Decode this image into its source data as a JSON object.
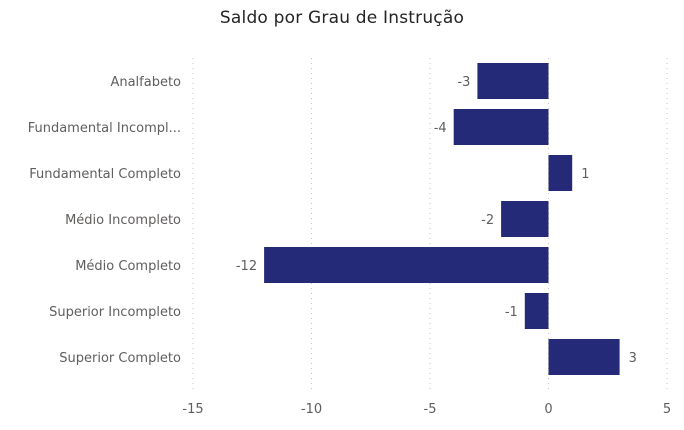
{
  "chart_data": {
    "type": "bar",
    "orientation": "horizontal",
    "title": "Saldo por Grau de Instrução",
    "xlabel": "",
    "ylabel": "",
    "categories": [
      "Analfabeto",
      "Fundamental Incompl...",
      "Fundamental Completo",
      "Médio Incompleto",
      "Médio Completo",
      "Superior Incompleto",
      "Superior Completo"
    ],
    "values": [
      -3,
      -4,
      1,
      -2,
      -12,
      -1,
      3
    ],
    "xlim": [
      -15,
      5
    ],
    "x_ticks": [
      -15,
      -10,
      -5,
      0,
      5
    ],
    "grid": true,
    "bar_color": "#252a78"
  }
}
